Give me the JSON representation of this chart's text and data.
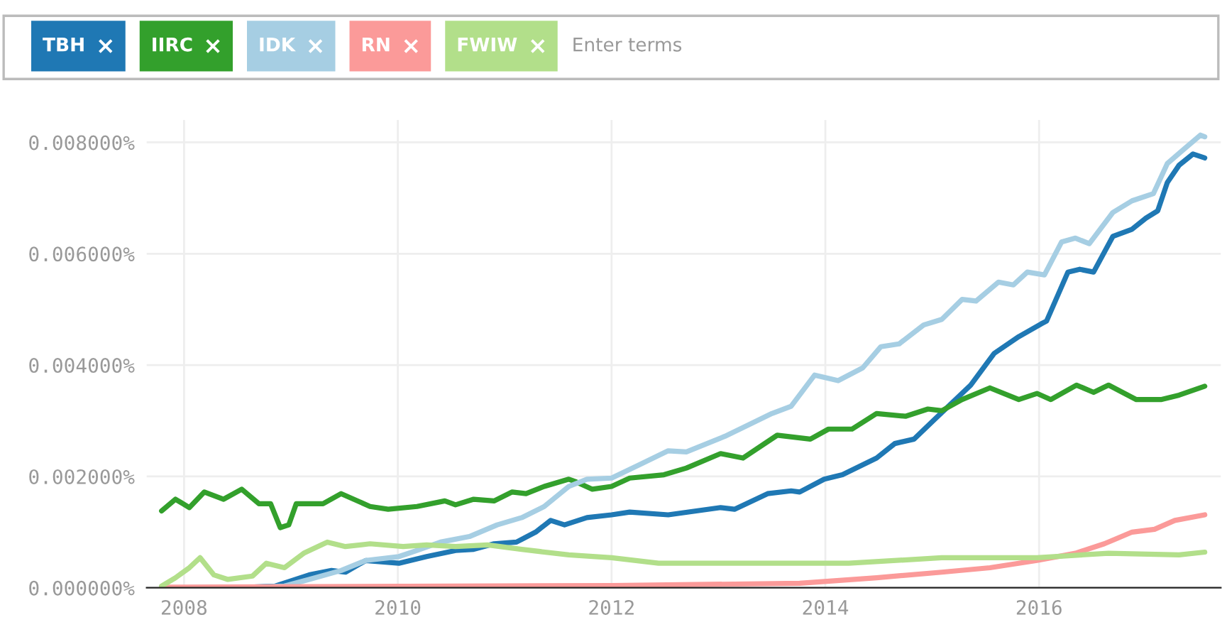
{
  "chart_data": {
    "type": "line",
    "xlim": [
      2007.65,
      2017.7
    ],
    "xticks": [
      2008,
      2010,
      2012,
      2014,
      2016
    ],
    "ylim": [
      0,
      0.0084
    ],
    "yticks": [
      {
        "value": 0,
        "label": "0.000000%"
      },
      {
        "value": 0.002,
        "label": "0.002000%"
      },
      {
        "value": 0.004,
        "label": "0.004000%"
      },
      {
        "value": 0.006,
        "label": "0.006000%"
      },
      {
        "value": 0.008,
        "label": "0.008000%"
      }
    ],
    "grid": true,
    "legend": "top",
    "marker": "none",
    "line_style": "solid",
    "annotations": [
      "Enter terms"
    ],
    "series": [
      {
        "name": "TBH",
        "color": "#1f78b4",
        "x": [
          2007.79,
          2008.5,
          2008.85,
          2009.17,
          2009.38,
          2009.51,
          2009.7,
          2010.01,
          2010.27,
          2010.54,
          2010.71,
          2010.9,
          2011.11,
          2011.29,
          2011.43,
          2011.56,
          2011.77,
          2012.0,
          2012.17,
          2012.53,
          2013.02,
          2013.15,
          2013.46,
          2013.68,
          2013.76,
          2013.99,
          2014.16,
          2014.48,
          2014.65,
          2014.83,
          2015.01,
          2015.36,
          2015.58,
          2015.81,
          2016.02,
          2016.07,
          2016.27,
          2016.38,
          2016.51,
          2016.69,
          2016.87,
          2017.0,
          2017.11,
          2017.2,
          2017.31,
          2017.44,
          2017.55
        ],
        "values": [
          0.0,
          0.0,
          3e-05,
          0.00023,
          0.00031,
          0.00028,
          0.00049,
          0.00044,
          0.00056,
          0.00067,
          0.00069,
          0.00079,
          0.00082,
          0.001,
          0.00121,
          0.00113,
          0.00126,
          0.00131,
          0.00136,
          0.00131,
          0.00144,
          0.00141,
          0.00169,
          0.00174,
          0.00172,
          0.00195,
          0.00203,
          0.00233,
          0.00259,
          0.00267,
          0.003,
          0.00364,
          0.00421,
          0.00451,
          0.00474,
          0.00479,
          0.00567,
          0.00572,
          0.00567,
          0.00631,
          0.00644,
          0.00664,
          0.00677,
          0.00728,
          0.00759,
          0.00779,
          0.00772
        ]
      },
      {
        "name": "IIRC",
        "color": "#33a02c",
        "x": [
          2007.79,
          2007.92,
          2008.05,
          2008.19,
          2008.37,
          2008.54,
          2008.7,
          2008.81,
          2008.9,
          2008.98,
          2009.05,
          2009.3,
          2009.47,
          2009.74,
          2009.91,
          2010.18,
          2010.44,
          2010.54,
          2010.71,
          2010.9,
          2011.07,
          2011.2,
          2011.37,
          2011.6,
          2011.67,
          2011.82,
          2012.0,
          2012.17,
          2012.49,
          2012.7,
          2013.02,
          2013.23,
          2013.55,
          2013.86,
          2014.03,
          2014.25,
          2014.48,
          2014.75,
          2014.96,
          2015.09,
          2015.28,
          2015.54,
          2015.81,
          2015.98,
          2016.11,
          2016.35,
          2016.51,
          2016.65,
          2016.91,
          2017.14,
          2017.31,
          2017.55
        ],
        "values": [
          0.00138,
          0.00159,
          0.00144,
          0.00172,
          0.00159,
          0.00177,
          0.00151,
          0.00151,
          0.00108,
          0.00113,
          0.00151,
          0.00151,
          0.00169,
          0.00146,
          0.00141,
          0.00146,
          0.00156,
          0.00149,
          0.00159,
          0.00156,
          0.00172,
          0.00169,
          0.00182,
          0.00195,
          0.0019,
          0.00177,
          0.00182,
          0.00197,
          0.00203,
          0.00215,
          0.00241,
          0.00233,
          0.00274,
          0.00267,
          0.00285,
          0.00285,
          0.00313,
          0.00308,
          0.00321,
          0.00318,
          0.00338,
          0.00359,
          0.00338,
          0.00349,
          0.00338,
          0.00364,
          0.00351,
          0.00364,
          0.00338,
          0.00338,
          0.00346,
          0.00362
        ]
      },
      {
        "name": "IDK",
        "color": "#a6cee3",
        "x": [
          2007.79,
          2008.68,
          2008.94,
          2009.17,
          2009.47,
          2009.7,
          2010.01,
          2010.18,
          2010.4,
          2010.67,
          2010.93,
          2011.16,
          2011.37,
          2011.6,
          2011.77,
          2012.0,
          2012.26,
          2012.53,
          2012.7,
          2013.06,
          2013.33,
          2013.5,
          2013.68,
          2013.9,
          2014.12,
          2014.35,
          2014.52,
          2014.69,
          2014.92,
          2015.09,
          2015.28,
          2015.41,
          2015.62,
          2015.76,
          2015.89,
          2016.05,
          2016.21,
          2016.34,
          2016.47,
          2016.69,
          2016.87,
          2017.07,
          2017.2,
          2017.35,
          2017.51,
          2017.55
        ],
        "values": [
          0.0,
          1e-05,
          3e-05,
          0.00015,
          0.00031,
          0.00049,
          0.00056,
          0.00067,
          0.00082,
          0.00092,
          0.00113,
          0.00126,
          0.00146,
          0.00182,
          0.00195,
          0.00197,
          0.00221,
          0.00246,
          0.00244,
          0.00272,
          0.00297,
          0.00313,
          0.00326,
          0.00382,
          0.00372,
          0.00395,
          0.00433,
          0.00438,
          0.00472,
          0.00482,
          0.00518,
          0.00515,
          0.00549,
          0.00544,
          0.00567,
          0.00562,
          0.00621,
          0.00628,
          0.00618,
          0.00674,
          0.00695,
          0.00708,
          0.00762,
          0.00787,
          0.00813,
          0.0081
        ]
      },
      {
        "name": "RN",
        "color": "#fb9a99",
        "x": [
          2007.79,
          2012.0,
          2013.76,
          2014.48,
          2015.09,
          2015.54,
          2015.98,
          2016.34,
          2016.61,
          2016.87,
          2017.08,
          2017.27,
          2017.55
        ],
        "values": [
          1e-05,
          4e-05,
          8e-05,
          0.00018,
          0.00028,
          0.00036,
          0.00049,
          0.00062,
          0.00079,
          0.001,
          0.00105,
          0.00121,
          0.00131
        ]
      },
      {
        "name": "FWIW",
        "color": "#b2df8a",
        "x": [
          2007.79,
          2007.92,
          2008.05,
          2008.15,
          2008.28,
          2008.41,
          2008.64,
          2008.77,
          2008.94,
          2009.12,
          2009.34,
          2009.51,
          2009.74,
          2010.05,
          2010.27,
          2010.54,
          2010.84,
          2011.16,
          2011.6,
          2012.0,
          2012.44,
          2013.33,
          2014.22,
          2015.09,
          2015.98,
          2016.65,
          2017.31,
          2017.55
        ],
        "values": [
          3e-05,
          0.00018,
          0.00036,
          0.00054,
          0.00023,
          0.00015,
          0.00021,
          0.00044,
          0.00036,
          0.00062,
          0.00082,
          0.00074,
          0.00079,
          0.00074,
          0.00077,
          0.00074,
          0.00077,
          0.00069,
          0.00059,
          0.00054,
          0.00044,
          0.00044,
          0.00044,
          0.00054,
          0.00054,
          0.00062,
          0.00059,
          0.00064
        ]
      }
    ]
  }
}
